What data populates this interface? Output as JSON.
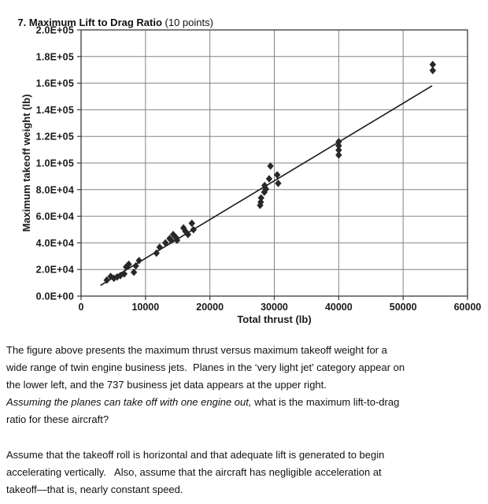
{
  "title": {
    "heading": "7. Maximum Lift to Drag Ratio",
    "points": " (10 points)"
  },
  "chart_data": {
    "type": "scatter",
    "title": "",
    "xlabel": "Total thrust (lb)",
    "ylabel": "Maximum takeoff weight (lb)",
    "xlim": [
      0,
      60000
    ],
    "ylim": [
      0,
      200000
    ],
    "grid": true,
    "legend": "none",
    "marker": "diamond",
    "colors": {
      "marker": "#2b2628",
      "trendline": "#1a1a1a",
      "grid": "#848484",
      "axis": "#3a3a3a"
    },
    "xticks": {
      "values": [
        0,
        10000,
        20000,
        30000,
        40000,
        50000,
        60000
      ],
      "labels": [
        "0",
        "10000",
        "20000",
        "30000",
        "40000",
        "50000",
        "60000"
      ]
    },
    "yticks": {
      "values": [
        0,
        20000,
        40000,
        60000,
        80000,
        100000,
        120000,
        140000,
        160000,
        180000,
        200000
      ],
      "labels": [
        "0.0E+00",
        "2.0E+04",
        "4.0E+04",
        "6.0E+04",
        "8.0E+04",
        "1.0E+05",
        "1.2E+05",
        "1.4E+05",
        "1.6E+05",
        "1.8E+05",
        "2.0E+05"
      ]
    },
    "trendline": {
      "x": [
        3000,
        54500
      ],
      "y": [
        8000,
        158000
      ]
    },
    "points": [
      [
        4000,
        12000
      ],
      [
        4600,
        14800
      ],
      [
        5100,
        13400
      ],
      [
        5600,
        14400
      ],
      [
        6100,
        15400
      ],
      [
        6700,
        16700
      ],
      [
        7000,
        21900
      ],
      [
        7400,
        23900
      ],
      [
        8200,
        17900
      ],
      [
        8500,
        22700
      ],
      [
        9000,
        26700
      ],
      [
        11700,
        32300
      ],
      [
        12200,
        36700
      ],
      [
        13100,
        40000
      ],
      [
        13750,
        43200
      ],
      [
        14000,
        41900
      ],
      [
        14300,
        46300
      ],
      [
        14700,
        44200
      ],
      [
        14900,
        42000
      ],
      [
        15900,
        51200
      ],
      [
        16200,
        48700
      ],
      [
        16600,
        46300
      ],
      [
        17200,
        54700
      ],
      [
        17450,
        49900
      ],
      [
        27800,
        68200
      ],
      [
        27900,
        70600
      ],
      [
        27950,
        73800
      ],
      [
        28450,
        78100
      ],
      [
        28500,
        83100
      ],
      [
        28700,
        80500
      ],
      [
        29200,
        88100
      ],
      [
        29400,
        97700
      ],
      [
        30450,
        91100
      ],
      [
        30600,
        84700
      ],
      [
        40000,
        106000
      ],
      [
        40000,
        109700
      ],
      [
        40000,
        113000
      ],
      [
        40000,
        116000
      ],
      [
        54600,
        169500
      ],
      [
        54600,
        174000
      ]
    ]
  },
  "body": {
    "p1_lines": [
      "The figure above presents the maximum thrust versus maximum takeoff weight for a",
      "wide range of twin engine business jets.  Planes in the ‘very light jet’ category appear on",
      "the lower left, and the 737 business jet data appears at the upper right."
    ],
    "p1_q_italic": "Assuming the planes can take off with one engine out,",
    "p1_q_rest": " what is the maximum lift-to-drag",
    "p1_q_last_line": "ratio for these aircraft?",
    "p2_lines": [
      "Assume that the takeoff roll is horizontal and that adequate lift is generated to begin",
      "accelerating vertically.   Also, assume that the aircraft has negligible acceleration at",
      "takeoff—that is, nearly constant speed."
    ]
  }
}
